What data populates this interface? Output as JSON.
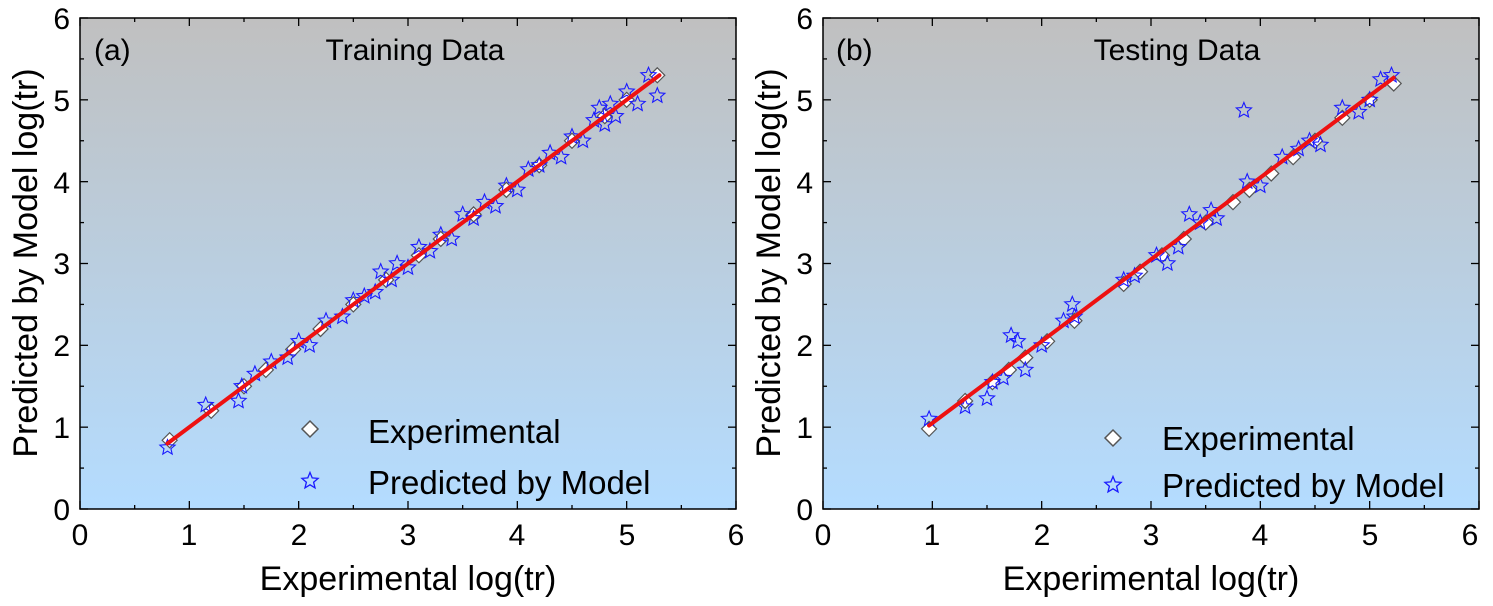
{
  "figure": {
    "colors": {
      "bg_top": "#c0c0c0",
      "bg_bottom": "#b4dcff",
      "experimental_fill": "#ffffff",
      "experimental_edge": "#555555",
      "predicted": "#1a1aff",
      "fit_line": "#ee1111"
    }
  },
  "chart_data": [
    {
      "type": "scatter",
      "panel_label": "(a)",
      "title": "Training Data",
      "xlabel": "Experimental log(tr)",
      "ylabel": "Predicted by Model log(tr)",
      "xlim": [
        0,
        6
      ],
      "ylim": [
        0,
        6
      ],
      "x_ticks": [
        "0",
        "1",
        "2",
        "3",
        "4",
        "5",
        "6"
      ],
      "y_ticks": [
        "0",
        "1",
        "2",
        "3",
        "4",
        "5",
        "6"
      ],
      "grid": false,
      "legend_position": "bottom-right",
      "legend": [
        "Experimental",
        "Predicted by Model"
      ],
      "fit_line": {
        "x": [
          0.8,
          5.3
        ],
        "y": [
          0.8,
          5.3
        ]
      },
      "series": [
        {
          "name": "Experimental",
          "marker": "diamond",
          "x": [
            0.82,
            1.2,
            1.5,
            1.7,
            1.95,
            2.2,
            2.5,
            2.8,
            3.1,
            3.3,
            3.6,
            3.9,
            4.2,
            4.5,
            4.8,
            5.0,
            5.28
          ],
          "y": [
            0.84,
            1.2,
            1.5,
            1.7,
            1.95,
            2.2,
            2.5,
            2.8,
            3.1,
            3.3,
            3.6,
            3.9,
            4.2,
            4.5,
            4.8,
            5.0,
            5.3
          ]
        },
        {
          "name": "Predicted by Model",
          "marker": "star",
          "x": [
            0.8,
            1.15,
            1.45,
            1.48,
            1.6,
            1.75,
            1.9,
            2.0,
            2.1,
            2.25,
            2.4,
            2.5,
            2.6,
            2.7,
            2.75,
            2.85,
            2.9,
            3.0,
            3.1,
            3.2,
            3.3,
            3.4,
            3.5,
            3.6,
            3.7,
            3.8,
            3.9,
            4.0,
            4.1,
            4.2,
            4.3,
            4.4,
            4.5,
            4.6,
            4.7,
            4.75,
            4.8,
            4.85,
            4.9,
            5.0,
            5.1,
            5.2,
            5.28
          ],
          "y": [
            0.75,
            1.27,
            1.32,
            1.5,
            1.65,
            1.8,
            1.85,
            2.05,
            2.0,
            2.3,
            2.35,
            2.55,
            2.6,
            2.65,
            2.9,
            2.8,
            3.0,
            2.95,
            3.2,
            3.15,
            3.35,
            3.3,
            3.6,
            3.55,
            3.75,
            3.7,
            3.95,
            3.9,
            4.15,
            4.2,
            4.35,
            4.3,
            4.55,
            4.5,
            4.75,
            4.9,
            4.7,
            4.95,
            4.8,
            5.1,
            4.95,
            5.3,
            5.05
          ]
        }
      ]
    },
    {
      "type": "scatter",
      "panel_label": "(b)",
      "title": "Testing Data",
      "xlabel": "Experimental log(tr)",
      "ylabel": "Predicted by Model log(tr)",
      "xlim": [
        0,
        6
      ],
      "ylim": [
        0,
        6
      ],
      "x_ticks": [
        "0",
        "1",
        "2",
        "3",
        "4",
        "5",
        "6"
      ],
      "y_ticks": [
        "0",
        "1",
        "2",
        "3",
        "4",
        "5",
        "6"
      ],
      "grid": false,
      "legend_position": "bottom-right",
      "legend": [
        "Experimental",
        "Predicted by Model"
      ],
      "fit_line": {
        "x": [
          0.97,
          5.22
        ],
        "y": [
          1.02,
          5.27
        ]
      },
      "series": [
        {
          "name": "Experimental",
          "marker": "diamond",
          "x": [
            0.97,
            1.3,
            1.55,
            1.7,
            1.85,
            2.05,
            2.3,
            2.75,
            2.9,
            3.1,
            3.3,
            3.5,
            3.75,
            3.9,
            4.1,
            4.3,
            4.5,
            4.75,
            5.0,
            5.22
          ],
          "y": [
            0.98,
            1.32,
            1.55,
            1.7,
            1.85,
            2.05,
            2.3,
            2.75,
            2.9,
            3.1,
            3.3,
            3.5,
            3.75,
            3.9,
            4.1,
            4.3,
            4.5,
            4.78,
            5.0,
            5.2
          ]
        },
        {
          "name": "Predicted by Model",
          "marker": "star",
          "x": [
            0.97,
            1.3,
            1.5,
            1.55,
            1.65,
            1.72,
            1.78,
            1.85,
            2.0,
            2.2,
            2.28,
            2.3,
            2.75,
            2.85,
            3.05,
            3.15,
            3.25,
            3.35,
            3.45,
            3.55,
            3.6,
            3.85,
            3.88,
            4.0,
            4.2,
            4.35,
            4.45,
            4.55,
            4.75,
            4.9,
            5.0,
            5.1,
            5.2
          ],
          "y": [
            1.1,
            1.25,
            1.35,
            1.55,
            1.6,
            2.12,
            2.05,
            1.7,
            2.0,
            2.3,
            2.5,
            2.35,
            2.8,
            2.85,
            3.1,
            3.0,
            3.2,
            3.6,
            3.5,
            3.65,
            3.55,
            4.87,
            4.0,
            3.95,
            4.3,
            4.4,
            4.5,
            4.45,
            4.9,
            4.85,
            5.0,
            5.25,
            5.3
          ]
        }
      ]
    }
  ]
}
